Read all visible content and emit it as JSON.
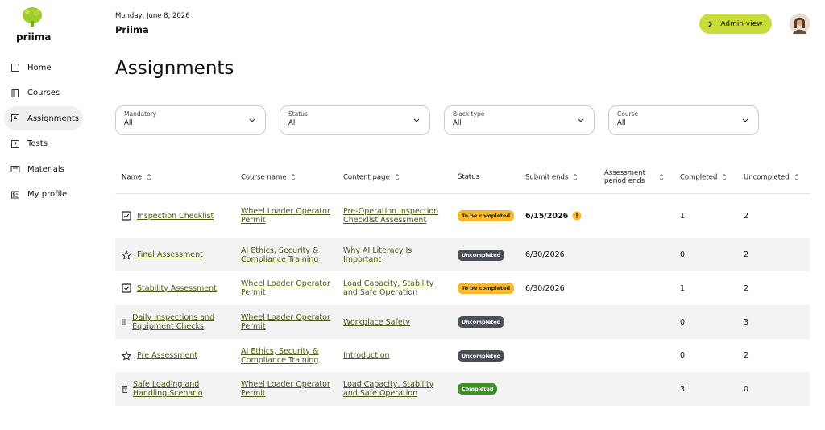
{
  "sidebar": {
    "logo": "priima",
    "nav": [
      "Home",
      "Courses",
      "Assignments",
      "Tests",
      "Materials",
      "My profile"
    ]
  },
  "header": {
    "date": "Monday, June 8, 2026",
    "org": "Priima",
    "button": "Admin view"
  },
  "page": {
    "title": "Assignments"
  },
  "filters": [
    {
      "label": "Mandatory",
      "value": "All"
    },
    {
      "label": "Status",
      "value": "All"
    },
    {
      "label": "Block type",
      "value": "All"
    },
    {
      "label": "Course",
      "value": "All"
    }
  ],
  "table": {
    "headers": [
      "Name",
      "Course name",
      "Content page",
      "Status",
      "Submit ends",
      "Assessment period ends",
      "Completed",
      "Uncompleted"
    ],
    "rows": [
      {
        "name": "Inspection Checklist",
        "course": "Wheel Loader Operator Permit",
        "content": "Pre-Operation Inspection Checklist Assessment",
        "status": "To be completed",
        "submit_ends": "6/15/2026",
        "completed": 1,
        "uncompleted": 2
      },
      {
        "name": "Final Assessment",
        "course": "AI Ethics, Security & Compliance Training",
        "content": "Why AI Literacy Is Important",
        "status": "Uncompleted",
        "submit_ends": "6/30/2026",
        "completed": 0,
        "uncompleted": 2
      },
      {
        "name": "Stability Assessment",
        "course": "Wheel Loader Operator Permit",
        "content": "Load Capacity, Stability and Safe Operation",
        "status": "To be completed",
        "submit_ends": "6/30/2026",
        "completed": 1,
        "uncompleted": 2
      },
      {
        "name": "Daily Inspections and Equipment Checks",
        "course": "Wheel Loader Operator Permit",
        "content": "Workplace Safety",
        "status": "Uncompleted",
        "completed": 0,
        "uncompleted": 3
      },
      {
        "name": "Pre Assessment",
        "course": "AI Ethics, Security & Compliance Training",
        "content": "Introduction",
        "status": "Uncompleted",
        "completed": 0,
        "uncompleted": 2
      },
      {
        "name": "Safe Loading and Handling Scenario",
        "course": "Wheel Loader Operator Permit",
        "content": "Load Capacity, Stability and Safe Operation",
        "status": "Completed",
        "completed": 3,
        "uncompleted": 0
      }
    ]
  }
}
